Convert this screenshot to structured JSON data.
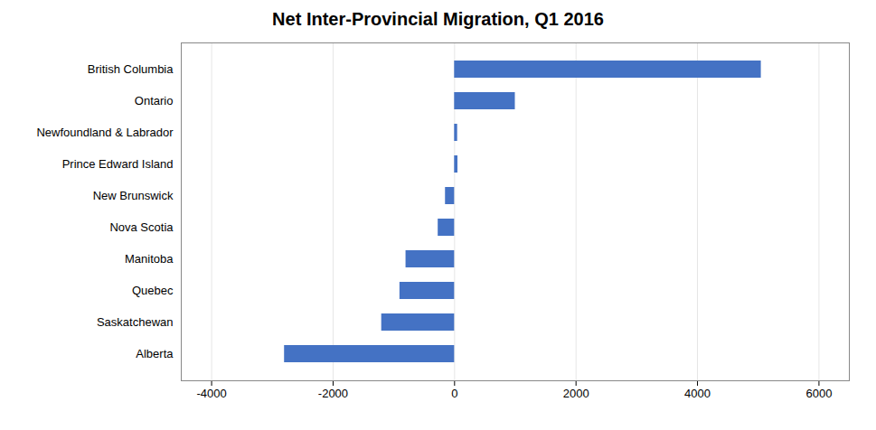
{
  "chart_data": {
    "type": "bar",
    "orientation": "horizontal",
    "title": "Net Inter-Provincial Migration, Q1 2016",
    "categories": [
      "British Columbia",
      "Ontario",
      "Newfoundland & Labrador",
      "Prince Edward Island",
      "New Brunswick",
      "Nova Scotia",
      "Manitoba",
      "Quebec",
      "Saskatchewan",
      "Alberta"
    ],
    "values": [
      5050,
      1000,
      50,
      55,
      -150,
      -270,
      -800,
      -900,
      -1200,
      -2800
    ],
    "color": "#4472C4",
    "xlim": [
      -4500,
      6500
    ],
    "xticks": [
      -4000,
      -2000,
      0,
      2000,
      4000,
      6000
    ],
    "grid": true
  }
}
